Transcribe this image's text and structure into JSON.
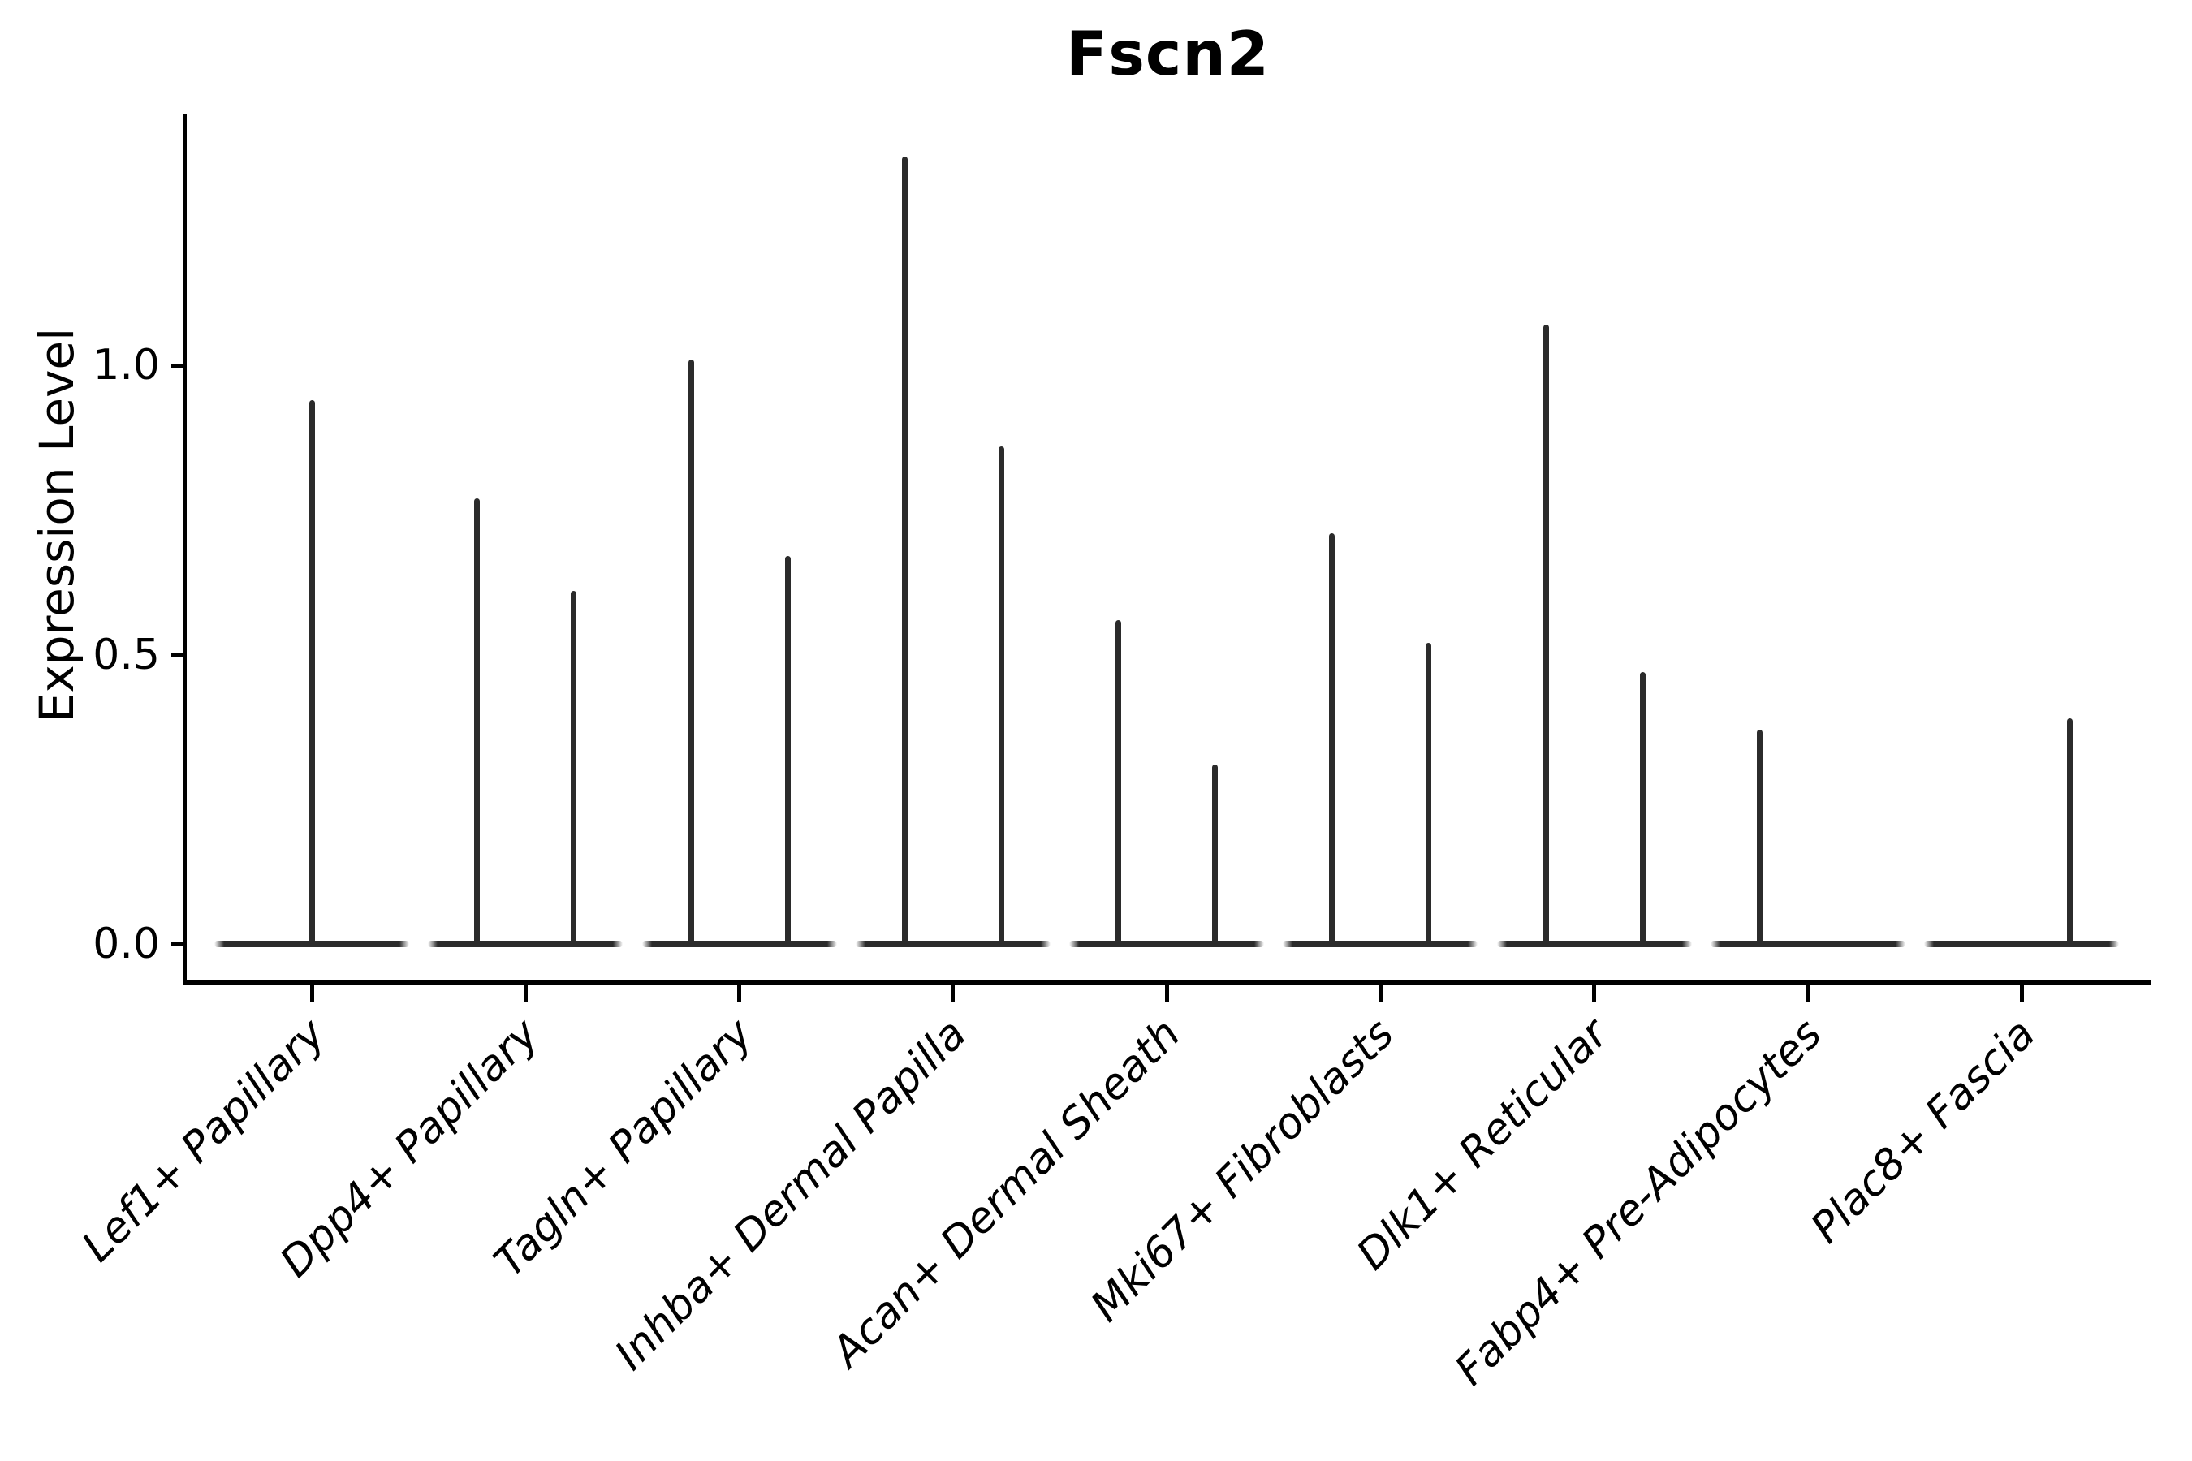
{
  "title": "Fscn2",
  "axes": {
    "y_label": "Expression Level",
    "y_tick_labels": [
      "0.0",
      "0.5",
      "1.0"
    ],
    "x_categories": [
      "Lef1+ Papillary",
      "Dpp4+ Papillary",
      "Tagln+ Papillary",
      "Inhba+ Dermal Papilla",
      "Acan+ Dermal Sheath",
      "Mki67+ Fibroblasts",
      "Dlk1+ Reticular",
      "Fabp4+ Pre-Adipocytes",
      "Plac8+ Fascia"
    ]
  },
  "colors": {
    "ink": "#000000",
    "violin": "#2b2b2b",
    "background": "#ffffff"
  },
  "chart_data": {
    "type": "violin",
    "title": "Fscn2",
    "xlabel": "",
    "ylabel": "Expression Level",
    "ylim": [
      0,
      1.43
    ],
    "yticks": [
      0.0,
      0.5,
      1.0
    ],
    "grid": false,
    "legend": false,
    "description": "Violin plot of Fscn2 expression; each category shows a flat base of zero-expression cells at 0.0 plus thin vertical spikes reaching the maximum expression of rare positive cells.",
    "categories": [
      "Lef1+ Papillary",
      "Dpp4+ Papillary",
      "Tagln+ Papillary",
      "Inhba+ Dermal Papilla",
      "Acan+ Dermal Sheath",
      "Mki67+ Fibroblasts",
      "Dlk1+ Reticular",
      "Fabp4+ Pre-Adipocytes",
      "Plac8+ Fascia"
    ],
    "baseline_value": 0.0,
    "series": [
      {
        "category": "Lef1+ Papillary",
        "spikes": [
          {
            "dx": 0,
            "value": 0.94
          }
        ]
      },
      {
        "category": "Dpp4+ Papillary",
        "spikes": [
          {
            "dx": -59.5,
            "value": 0.77
          },
          {
            "dx": 59.5,
            "value": 0.61
          }
        ]
      },
      {
        "category": "Tagln+ Papillary",
        "spikes": [
          {
            "dx": -59.5,
            "value": 1.01
          },
          {
            "dx": 59.5,
            "value": 0.67
          }
        ]
      },
      {
        "category": "Inhba+ Dermal Papilla",
        "spikes": [
          {
            "dx": -59.5,
            "value": 1.36
          },
          {
            "dx": 59.5,
            "value": 0.86
          }
        ]
      },
      {
        "category": "Acan+ Dermal Sheath",
        "spikes": [
          {
            "dx": -59.5,
            "value": 0.56
          },
          {
            "dx": 59.5,
            "value": 0.31
          }
        ]
      },
      {
        "category": "Mki67+ Fibroblasts",
        "spikes": [
          {
            "dx": -59.5,
            "value": 0.71
          },
          {
            "dx": 59.5,
            "value": 0.52
          }
        ]
      },
      {
        "category": "Dlk1+ Reticular",
        "spikes": [
          {
            "dx": -59.5,
            "value": 1.07
          },
          {
            "dx": 59.5,
            "value": 0.47
          }
        ]
      },
      {
        "category": "Fabp4+ Pre-Adipocytes",
        "spikes": [
          {
            "dx": -59.5,
            "value": 0.37
          }
        ]
      },
      {
        "category": "Plac8+ Fascia",
        "spikes": [
          {
            "dx": 59.5,
            "value": 0.39
          }
        ]
      }
    ]
  }
}
